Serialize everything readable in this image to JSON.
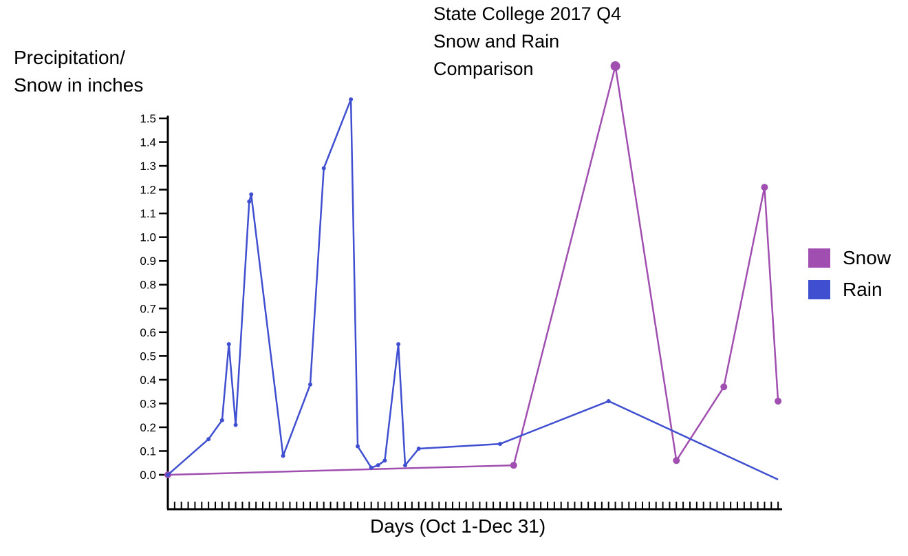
{
  "title_lines": [
    "State College 2017 Q4",
    "Snow and Rain",
    "Comparison"
  ],
  "ylabel_lines": [
    "Precipitation/",
    "Snow in inches"
  ],
  "xlabel": "Days (Oct 1-Dec 31)",
  "colors": {
    "snow": "#a04fb0",
    "rain": "#3f4fd0",
    "axis": "#000000"
  },
  "chart_data": {
    "type": "line",
    "title": "State College 2017 Q4 Snow and Rain Comparison",
    "xlabel": "Days (Oct 1-Dec 31)",
    "ylabel": "Precipitation/ Snow in inches",
    "xlim": [
      1,
      92
    ],
    "ylim": [
      0,
      1.5
    ],
    "yticks": [
      "0.0",
      "0.1",
      "0.2",
      "0.3",
      "0.4",
      "0.5",
      "0.6",
      "0.7",
      "0.8",
      "0.9",
      "1.0",
      "1.1",
      "1.2",
      "1.3",
      "1.4",
      "1.5"
    ],
    "grid": false,
    "legend_position": "right",
    "series": [
      {
        "name": "Snow",
        "color": "#a04fb0",
        "x": [
          1,
          52,
          67,
          76,
          83,
          89,
          91
        ],
        "y": [
          0.0,
          0.04,
          1.72,
          0.06,
          0.37,
          1.21,
          0.31
        ]
      },
      {
        "name": "Rain",
        "color": "#3f4fd0",
        "x": [
          1,
          7,
          9,
          10,
          11,
          13,
          13.3,
          18,
          22,
          24,
          28,
          29,
          31,
          32,
          33,
          35,
          36,
          38,
          50,
          66,
          91
        ],
        "y": [
          0.0,
          0.15,
          0.23,
          0.55,
          0.21,
          1.15,
          1.18,
          0.08,
          0.38,
          1.29,
          1.58,
          0.12,
          0.03,
          0.04,
          0.06,
          0.55,
          0.04,
          0.11,
          0.13,
          0.31,
          -0.02
        ]
      }
    ]
  }
}
